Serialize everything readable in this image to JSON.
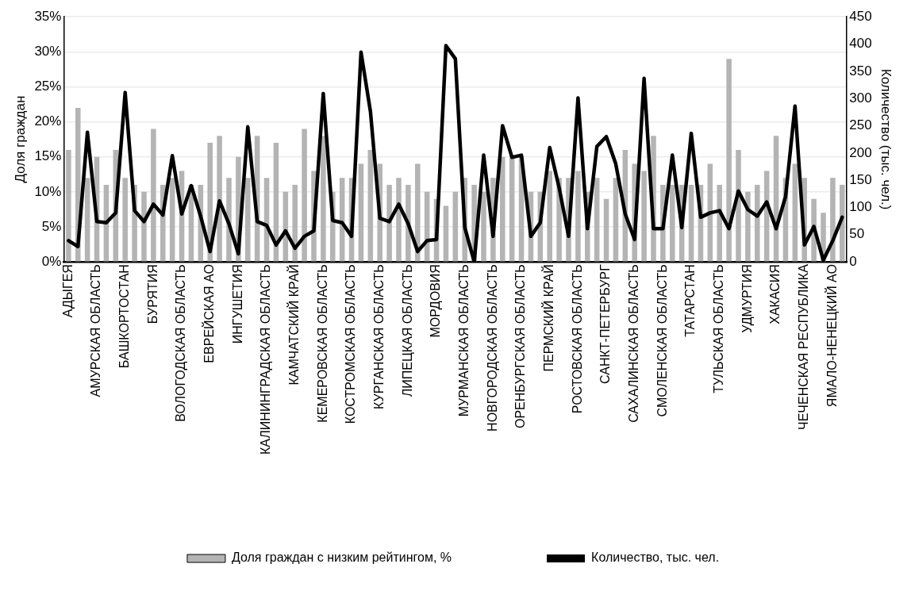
{
  "chart_data": {
    "type": "bar",
    "ylabel": "Доля граждан",
    "y2label": "Количество (тыс. чел.)",
    "categories": [
      "АДЫГЕЯ",
      null,
      null,
      "АМУРСКАЯ ОБЛАСТЬ",
      null,
      null,
      "БАШКОРТОСТАН",
      null,
      null,
      "БУРЯТИЯ",
      null,
      null,
      "ВОЛОГОДСКАЯ ОБЛАСТЬ",
      null,
      null,
      "ЕВРЕЙСКАЯ АО",
      null,
      null,
      "ИНГУШЕТИЯ",
      null,
      null,
      "КАЛИНИНГРАДСКАЯ ОБЛАСТЬ",
      null,
      null,
      "КАМЧАТСКИЙ КРАЙ",
      null,
      null,
      "КЕМЕРОВСКАЯ ОБЛАСТЬ",
      null,
      null,
      "КОСТРОМСКАЯ ОБЛАСТЬ",
      null,
      null,
      "КУРГАНСКАЯ ОБЛАСТЬ",
      null,
      null,
      "ЛИПЕЦКАЯ ОБЛАСТЬ",
      null,
      null,
      "МОРДОВИЯ",
      null,
      null,
      "МУРМАНСКАЯ ОБЛАСТЬ",
      null,
      null,
      "НОВГОРОДСКАЯ ОБЛАСТЬ",
      null,
      null,
      "ОРЕНБУРГСКАЯ ОБЛАСТЬ",
      null,
      null,
      "ПЕРМСКИЙ КРАЙ",
      null,
      null,
      "РОСТОВСКАЯ ОБЛАСТЬ",
      null,
      null,
      "САНКТ-ПЕТЕРБУРГ",
      null,
      null,
      "САХАЛИНСКАЯ ОБЛАСТЬ",
      null,
      null,
      "СМОЛЕНСКАЯ ОБЛАСТЬ",
      null,
      null,
      "ТАТАРСТАН",
      null,
      null,
      "ТУЛЬСКАЯ ОБЛАСТЬ",
      null,
      null,
      "УДМУРТИЯ",
      null,
      null,
      "ХАКАСИЯ",
      null,
      null,
      "ЧЕЧЕНСКАЯ РЕСПУБЛИКА",
      null,
      null,
      "ЯМАЛО-НЕНЕЦКИЙ АО",
      null
    ],
    "series": [
      {
        "name": "Доля граждан с низким рейтингом, %",
        "color": "#b4b4b4",
        "values": [
          16,
          22,
          12,
          15,
          11,
          16,
          12,
          11,
          10,
          19,
          11,
          12,
          13,
          11,
          11,
          17,
          18,
          12,
          15,
          12,
          18,
          12,
          17,
          10,
          11,
          19,
          13,
          18,
          10,
          12,
          12,
          14,
          16,
          14,
          11,
          12,
          11,
          14,
          10,
          9,
          8,
          10,
          12,
          11,
          10,
          12,
          15,
          15,
          15,
          10,
          10,
          13,
          12,
          12,
          13,
          10,
          12,
          9,
          12,
          16,
          14,
          13,
          18,
          11,
          11,
          11,
          11,
          11,
          14,
          11,
          29,
          16,
          10,
          11,
          13,
          18,
          12,
          14,
          12,
          9,
          7,
          12,
          11
        ]
      },
      {
        "name": "Количество, тыс. чел.",
        "type": "line",
        "axis": "y2",
        "color": "#000000",
        "values": [
          39,
          28,
          238,
          74,
          72,
          90,
          311,
          94,
          74,
          106,
          86,
          195,
          88,
          140,
          84,
          19,
          112,
          70,
          15,
          248,
          74,
          67,
          31,
          57,
          25,
          47,
          57,
          309,
          76,
          72,
          47,
          385,
          276,
          80,
          74,
          106,
          70,
          19,
          39,
          41,
          397,
          373,
          63,
          0,
          196,
          47,
          250,
          192,
          196,
          47,
          72,
          210,
          136,
          47,
          301,
          61,
          212,
          230,
          180,
          88,
          41,
          337,
          61,
          61,
          196,
          63,
          236,
          82,
          90,
          94,
          61,
          130,
          96,
          84,
          110,
          61,
          120,
          286,
          31,
          65,
          3,
          39,
          82
        ]
      }
    ],
    "ylim": [
      0,
      35
    ],
    "yticks": [
      {
        "value": 0,
        "label": "0%"
      },
      {
        "value": 5,
        "label": "5%"
      },
      {
        "value": 10,
        "label": "10%"
      },
      {
        "value": 15,
        "label": "15%"
      },
      {
        "value": 20,
        "label": "20%"
      },
      {
        "value": 25,
        "label": "25%"
      },
      {
        "value": 30,
        "label": "30%"
      },
      {
        "value": 35,
        "label": "35%"
      }
    ],
    "y2lim": [
      0,
      450
    ],
    "y2ticks": [
      0,
      50,
      100,
      150,
      200,
      250,
      300,
      350,
      400,
      450
    ],
    "grid": "y",
    "legend": "bottom",
    "line_style": "solid",
    "marker": "none"
  }
}
